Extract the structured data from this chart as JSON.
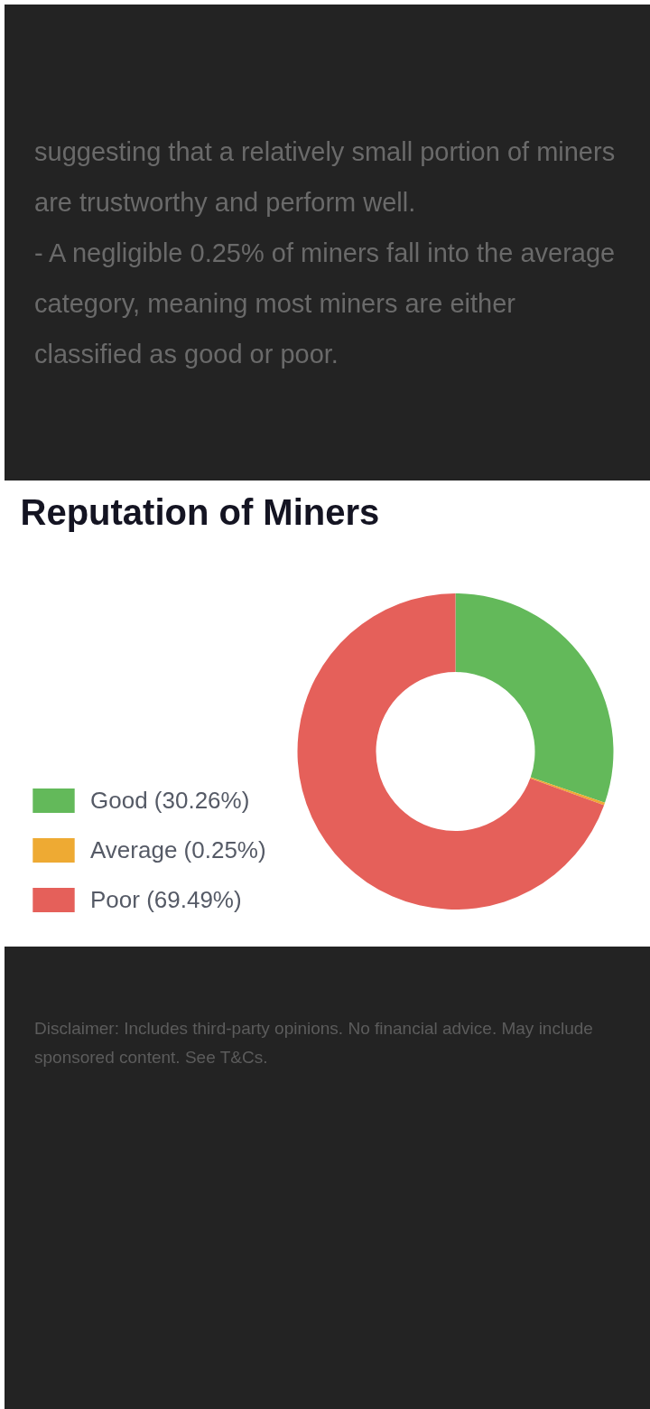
{
  "chart_data": {
    "type": "donut",
    "title": "Reputation of Miners",
    "categories": [
      "Good (30.26%)",
      "Average (0.25%)",
      "Poor (69.49%)"
    ],
    "values": [
      30.26,
      0.25,
      69.49
    ],
    "colors": [
      "#63b95a",
      "#eeaa33",
      "#e5605a"
    ],
    "legend": "bottom left",
    "annotations": [
      "suggesting that a relatively small portion of miners are trustworthy and perform well.",
      "- A negligible 0.25% of miners fall into the average category, meaning most miners are either classified as good or poor.",
      "Disclaimer: Includes third-party opinions. No financial advice. May include sponsored content. See T&Cs."
    ]
  }
}
